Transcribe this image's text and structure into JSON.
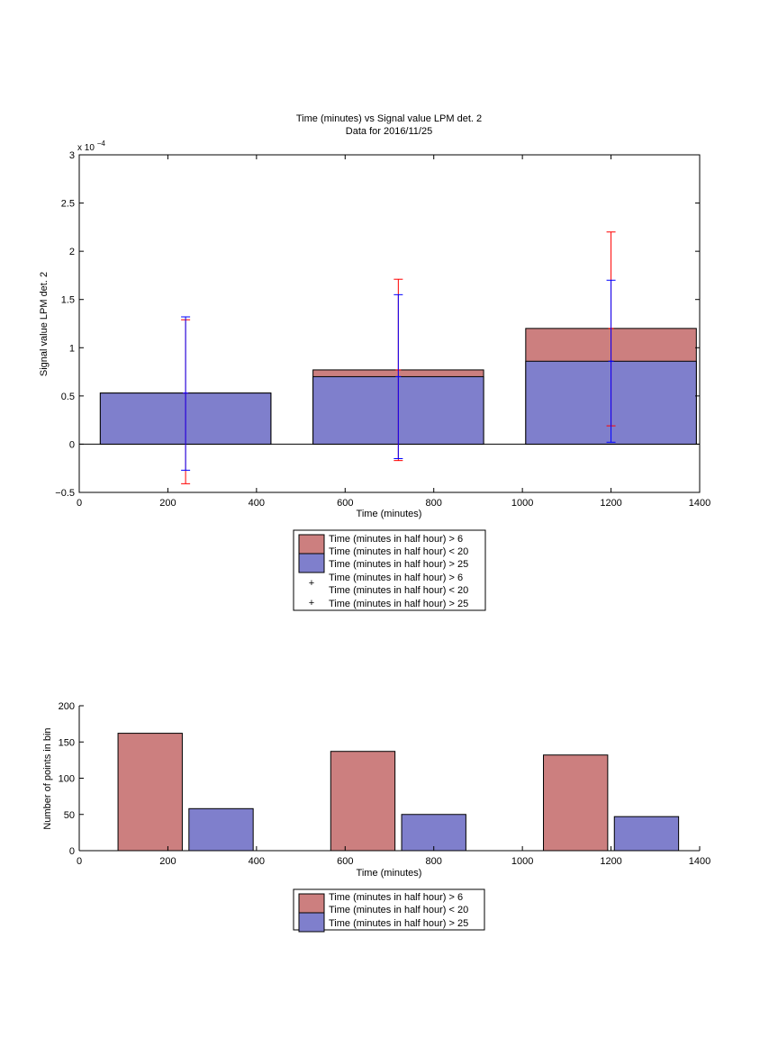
{
  "chart_data": [
    {
      "type": "bar",
      "title": "Time (minutes) vs Signal value LPM det. 2",
      "subtitle": "Data for 2016/11/25",
      "xlabel": "Time (minutes)",
      "ylabel": "Signal value LPM det. 2",
      "exponent_label": "x 10",
      "exponent_power": "−4",
      "xlim": [
        0,
        1400
      ],
      "ylim": [
        -0.5,
        3
      ],
      "y_scale": 0.0001,
      "xticks": [
        "0",
        "200",
        "400",
        "600",
        "800",
        "1000",
        "1200",
        "1400"
      ],
      "yticks": [
        "−0.5",
        "0",
        "0.5",
        "1",
        "1.5",
        "2",
        "2.5",
        "3"
      ],
      "xtick_values": [
        0,
        200,
        400,
        600,
        800,
        1000,
        1200,
        1400
      ],
      "ytick_values": [
        -0.5,
        0,
        0.5,
        1,
        1.5,
        2,
        2.5,
        3
      ],
      "bar_centers": [
        240,
        720,
        1200
      ],
      "bar_width": 385,
      "series": [
        {
          "name": "Time (minutes in half hour) > 6 Time (minutes in half hour) < 20",
          "color": "#cc7f7f",
          "values": [
            0.53,
            0.77,
            1.2
          ],
          "error_low": [
            -0.41,
            -0.17,
            0.19
          ],
          "error_high": [
            1.29,
            1.71,
            2.2
          ]
        },
        {
          "name": "Time (minutes in half hour) > 25",
          "color": "#7f7fcc",
          "values": [
            0.53,
            0.7,
            0.86
          ],
          "error_low": [
            -0.27,
            -0.15,
            0.02
          ],
          "error_high": [
            1.32,
            1.55,
            1.7
          ]
        }
      ],
      "errorbar_colors": [
        "#ff0000",
        "#0000ff"
      ],
      "legend": {
        "placement": "below",
        "lines": [
          "Time (minutes in half hour) > 6",
          "Time (minutes in half hour) < 20",
          "Time (minutes in half hour) > 25",
          "Time (minutes in half hour) > 6",
          "Time (minutes in half hour) < 20",
          "Time (minutes in half hour) > 25"
        ]
      }
    },
    {
      "type": "bar",
      "xlabel": "Time (minutes)",
      "ylabel": "Number of points in bin",
      "xlim": [
        0,
        1400
      ],
      "ylim": [
        0,
        200
      ],
      "xticks": [
        "0",
        "200",
        "400",
        "600",
        "800",
        "1000",
        "1200",
        "1400"
      ],
      "yticks": [
        "0",
        "50",
        "100",
        "150",
        "200"
      ],
      "xtick_values": [
        0,
        200,
        400,
        600,
        800,
        1000,
        1200,
        1400
      ],
      "ytick_values": [
        0,
        50,
        100,
        150,
        200
      ],
      "bar_width": 145,
      "series": [
        {
          "name": "Time (minutes in half hour) > 6 Time (minutes in half hour) < 20",
          "color": "#cc7f7f",
          "x": [
            160,
            640,
            1120
          ],
          "values": [
            162,
            137,
            132
          ]
        },
        {
          "name": "Time (minutes in half hour) > 25",
          "color": "#7f7fcc",
          "x": [
            320,
            800,
            1280
          ],
          "values": [
            58,
            50,
            47
          ]
        }
      ],
      "legend": {
        "placement": "below",
        "lines": [
          "Time (minutes in half hour) > 6",
          "Time (minutes in half hour) < 20",
          "Time (minutes in half hour) > 25"
        ]
      }
    }
  ]
}
